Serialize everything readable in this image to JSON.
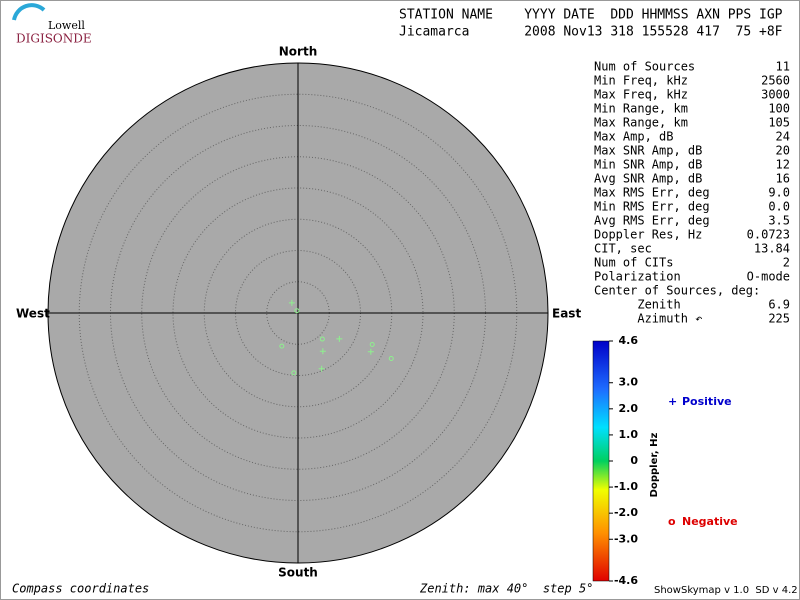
{
  "logo": {
    "top": "Lowell",
    "bottom": "DIGISONDE"
  },
  "header": {
    "columns": "STATION NAME    YYYY DATE  DDD HHMMSS AXN PPS IGP",
    "values": "Jicamarca       2008 Nov13 318 155528 417  75 +8F"
  },
  "stats": [
    [
      "Num of Sources",
      "11"
    ],
    [
      "Min Freq, kHz",
      "2560"
    ],
    [
      "Max Freq, kHz",
      "3000"
    ],
    [
      "Min Range, km",
      "100"
    ],
    [
      "Max Range, km",
      "105"
    ],
    [
      "Max Amp, dB",
      "24"
    ],
    [
      "Max SNR Amp, dB",
      "20"
    ],
    [
      "Min SNR Amp, dB",
      "12"
    ],
    [
      "Avg SNR Amp, dB",
      "16"
    ],
    [
      "Max RMS Err, deg",
      "9.0"
    ],
    [
      "Min RMS Err, deg",
      "0.0"
    ],
    [
      "Avg RMS Err, deg",
      "3.5"
    ],
    [
      "Doppler Res, Hz",
      "0.0723"
    ],
    [
      "CIT, sec",
      "13.84"
    ],
    [
      "Num of CITs",
      "2"
    ],
    [
      "Polarization",
      "O-mode"
    ],
    [
      "Center of Sources, deg:",
      ""
    ],
    [
      "      Zenith",
      "6.9"
    ],
    [
      "      Azimuth ↶",
      "225"
    ]
  ],
  "footer": {
    "left": "Compass coordinates",
    "middle": "Zenith: max 40°  step 5°",
    "right": "ShowSkymap v 1.0  SD v 4.2"
  },
  "chart_data": {
    "type": "skymap",
    "compass": {
      "north": "North",
      "east": "East",
      "south": "South",
      "west": "West"
    },
    "rlim": [
      0,
      40
    ],
    "rticks": [
      5,
      10,
      15,
      20,
      25,
      30,
      35
    ],
    "series": [
      {
        "name": "Positive",
        "marker": "+",
        "color": "#8ef08e",
        "legend_color": "#0000cc",
        "zenith": [
          1.9,
          7.8,
          7.3,
          13.2,
          9.7
        ],
        "azimuth": [
          329,
          122,
          147,
          118,
          157
        ]
      },
      {
        "name": "Negative",
        "marker": "o",
        "color": "#8ef08e",
        "legend_color": "#dd0000",
        "zenith": [
          0.4,
          5.9,
          5.7,
          12.9,
          16.6,
          9.6
        ],
        "azimuth": [
          333,
          206,
          137,
          113,
          116,
          184
        ]
      }
    ],
    "colorbar": {
      "label": "Doppler, Hz",
      "lim": [
        -4.6,
        4.6
      ],
      "ticks": [
        4.6,
        {
          "value": 3,
          "label": "3.0"
        },
        {
          "value": 2,
          "label": "2.0"
        },
        {
          "value": 1,
          "label": "1.0"
        },
        0,
        {
          "value": -1,
          "label": "-1.0"
        },
        {
          "value": -2,
          "label": "-2.0"
        },
        {
          "value": -3,
          "label": "-3.0"
        },
        -4.6
      ]
    }
  }
}
